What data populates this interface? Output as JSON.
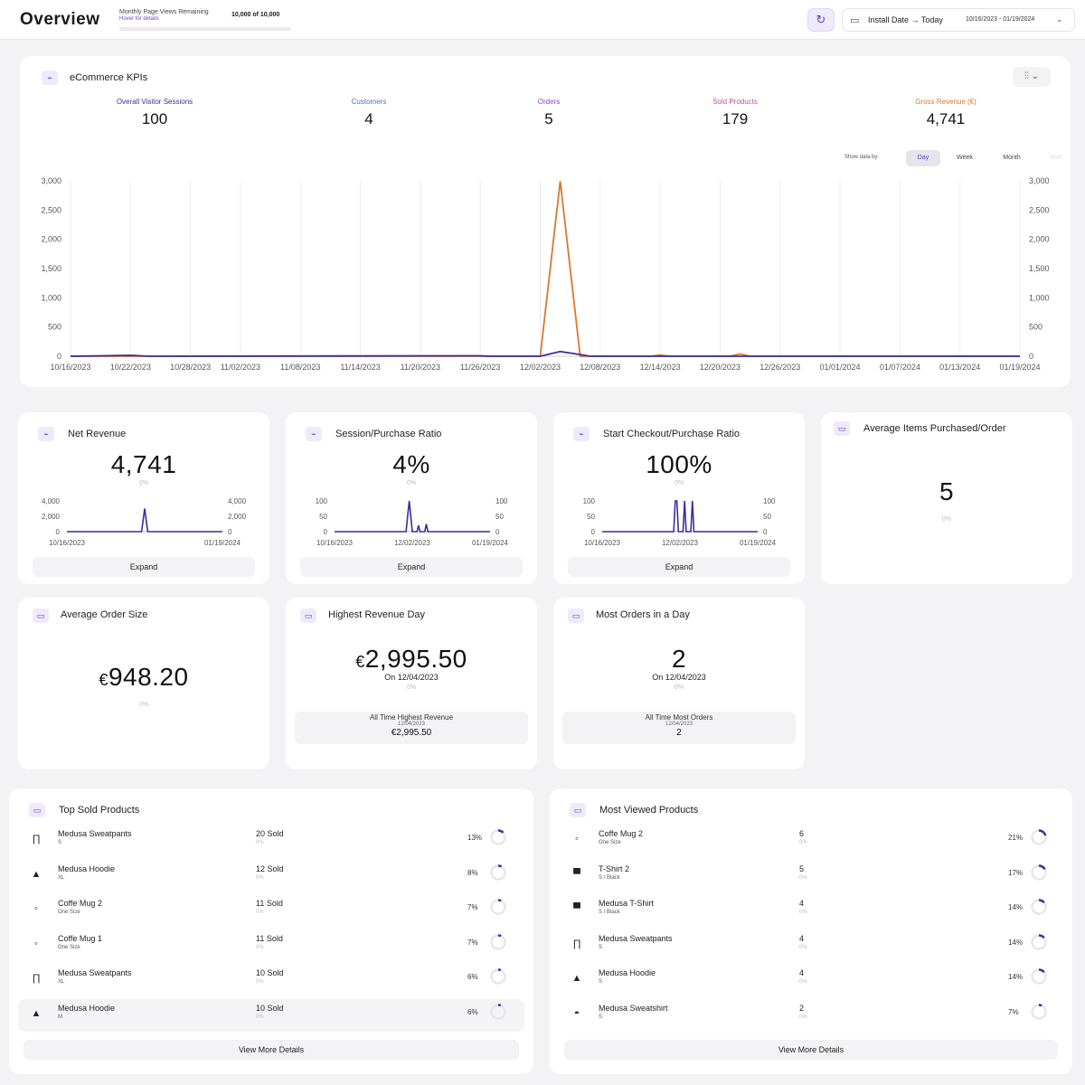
{
  "header": {
    "title": "Overview",
    "page_views_label": "Monthly Page Views Remaining",
    "page_views_hint": "Hover for details",
    "page_views_value": "10,000 of 10,000",
    "date_label": "Install Date → Today",
    "date_range": "10/16/2023 - 01/19/2024"
  },
  "kpi": {
    "title": "eCommerce KPIs",
    "metrics": [
      {
        "label": "Overall Visitor Sessions",
        "value": "100",
        "color": "#3b2d9e"
      },
      {
        "label": "Customers",
        "value": "4",
        "color": "#4a6fd1"
      },
      {
        "label": "Orders",
        "value": "5",
        "color": "#8e44c7"
      },
      {
        "label": "Sold Products",
        "value": "179",
        "color": "#c04fa0"
      },
      {
        "label": "Gross Revenue (€)",
        "value": "4,741",
        "color": "#d9782e"
      }
    ],
    "show_by_label": "Show data by:",
    "show_by_options": [
      "Day",
      "Week",
      "Month",
      "Year"
    ],
    "show_by_selected": "Day"
  },
  "chart_data": [
    {
      "type": "line",
      "title": "",
      "x": [
        "10/16/2023",
        "10/22/2023",
        "10/28/2023",
        "11/02/2023",
        "11/08/2023",
        "11/14/2023",
        "11/20/2023",
        "11/26/2023",
        "12/02/2023",
        "12/08/2023",
        "12/14/2023",
        "12/20/2023",
        "12/26/2023",
        "01/01/2024",
        "01/07/2024",
        "01/13/2024",
        "01/19/2024"
      ],
      "ylim": [
        0,
        3000
      ],
      "yticks": [
        "3,000",
        "2,500",
        "2,000",
        "1,500",
        "1,000",
        "500",
        "0"
      ],
      "series": [
        {
          "name": "Gross Revenue (€)",
          "color": "#d9782e",
          "points": [
            [
              "10/16/2023",
              0
            ],
            [
              "12/02/2023",
              0
            ],
            [
              "12/04/2023",
              2995.5
            ],
            [
              "12/06/2023",
              0
            ],
            [
              "12/13/2023",
              0
            ],
            [
              "12/14/2023",
              20
            ],
            [
              "12/15/2023",
              0
            ],
            [
              "12/21/2023",
              0
            ],
            [
              "12/22/2023",
              40
            ],
            [
              "12/23/2023",
              0
            ],
            [
              "01/19/2024",
              0
            ]
          ]
        },
        {
          "name": "Overall Visitor Sessions",
          "color": "#3b2d9e",
          "points": [
            [
              "10/16/2023",
              0
            ],
            [
              "10/22/2023",
              15
            ],
            [
              "10/24/2023",
              0
            ],
            [
              "11/26/2023",
              8
            ],
            [
              "11/27/2023",
              0
            ],
            [
              "12/02/2023",
              0
            ],
            [
              "12/04/2023",
              80
            ],
            [
              "12/06/2023",
              30
            ],
            [
              "12/07/2023",
              0
            ],
            [
              "01/19/2024",
              0
            ]
          ]
        }
      ]
    },
    {
      "type": "line",
      "title": "",
      "x_ticks": [
        "10/16/2023",
        "01/19/2024"
      ],
      "yticks": [
        "4,000",
        "2,000",
        "0"
      ],
      "ylim": [
        0,
        4000
      ],
      "series": [
        {
          "name": "",
          "color": "#3b2d9e",
          "points": [
            [
              0,
              0
            ],
            [
              0.48,
              0
            ],
            [
              0.5,
              2995
            ],
            [
              0.52,
              0
            ],
            [
              1,
              0
            ]
          ]
        }
      ]
    },
    {
      "type": "line",
      "title": "",
      "x_ticks": [
        "10/16/2023",
        "12/02/2023",
        "01/19/2024"
      ],
      "yticks": [
        "100",
        "50",
        "0"
      ],
      "ylim": [
        0,
        100
      ],
      "series": [
        {
          "name": "",
          "color": "#3b2d9e",
          "points": [
            [
              0,
              0
            ],
            [
              0.46,
              0
            ],
            [
              0.48,
              100
            ],
            [
              0.5,
              0
            ],
            [
              0.53,
              0
            ],
            [
              0.54,
              20
            ],
            [
              0.55,
              0
            ],
            [
              0.58,
              0
            ],
            [
              0.59,
              25
            ],
            [
              0.6,
              0
            ],
            [
              1,
              0
            ]
          ]
        }
      ]
    },
    {
      "type": "line",
      "title": "",
      "x_ticks": [
        "10/16/2023",
        "12/02/2023",
        "01/19/2024"
      ],
      "yticks": [
        "100",
        "50",
        "0"
      ],
      "ylim": [
        0,
        100
      ],
      "series": [
        {
          "name": "",
          "color": "#3b2d9e",
          "points": [
            [
              0,
              0
            ],
            [
              0.46,
              0
            ],
            [
              0.47,
              100
            ],
            [
              0.48,
              100
            ],
            [
              0.49,
              0
            ],
            [
              0.52,
              0
            ],
            [
              0.53,
              100
            ],
            [
              0.54,
              0
            ],
            [
              0.57,
              0
            ],
            [
              0.58,
              100
            ],
            [
              0.59,
              0
            ],
            [
              1,
              0
            ]
          ]
        }
      ]
    }
  ],
  "cards": {
    "net_revenue": {
      "title": "Net Revenue",
      "value": "4,741",
      "pct": "0%",
      "expand": "Expand"
    },
    "session_ratio": {
      "title": "Session/Purchase Ratio",
      "value": "4%",
      "pct": "0%",
      "expand": "Expand"
    },
    "checkout_ratio": {
      "title": "Start Checkout/Purchase Ratio",
      "value": "100%",
      "pct": "0%",
      "expand": "Expand"
    },
    "avg_items": {
      "title": "Average Items Purchased/Order",
      "value": "5",
      "pct": "0%"
    },
    "avg_order": {
      "title": "Average Order Size",
      "currency": "€",
      "value": "948.20",
      "pct": "0%"
    },
    "highest_day": {
      "title": "Highest Revenue Day",
      "currency": "€",
      "value": "2,995.50",
      "on": "On 12/04/2023",
      "pct": "0%",
      "sub_title": "All Time Highest Revenue",
      "sub_date": "12/04/2023",
      "sub_value": "€2,995.50"
    },
    "most_orders": {
      "title": "Most Orders in a Day",
      "value": "2",
      "on": "On 12/04/2023",
      "pct": "0%",
      "sub_title": "All Time Most Orders",
      "sub_date": "12/04/2023",
      "sub_value": "2"
    }
  },
  "top_sold": {
    "title": "Top Sold Products",
    "more": "View More Details",
    "items": [
      {
        "icon": "pants-icon",
        "name": "Medusa Sweatpants",
        "variant": "S",
        "sold": "20 Sold",
        "sub": "0%",
        "pct": "13%",
        "ratio": 0.13
      },
      {
        "icon": "hoodie-icon",
        "name": "Medusa Hoodie",
        "variant": "XL",
        "sold": "12 Sold",
        "sub": "0%",
        "pct": "8%",
        "ratio": 0.08
      },
      {
        "icon": "mug-icon",
        "name": "Coffe Mug 2",
        "variant": "One Size",
        "sold": "11 Sold",
        "sub": "0%",
        "pct": "7%",
        "ratio": 0.07
      },
      {
        "icon": "mug-icon",
        "name": "Coffe Mug 1",
        "variant": "One Size",
        "sold": "11 Sold",
        "sub": "0%",
        "pct": "7%",
        "ratio": 0.07
      },
      {
        "icon": "pants-icon",
        "name": "Medusa Sweatpants",
        "variant": "XL",
        "sold": "10 Sold",
        "sub": "0%",
        "pct": "6%",
        "ratio": 0.06
      },
      {
        "icon": "hoodie-icon",
        "name": "Medusa Hoodie",
        "variant": "M",
        "sold": "10 Sold",
        "sub": "0%",
        "pct": "6%",
        "ratio": 0.06
      }
    ]
  },
  "most_viewed": {
    "title": "Most Viewed Products",
    "more": "View More Details",
    "items": [
      {
        "icon": "mug-icon",
        "name": "Coffe Mug 2",
        "variant": "One Size",
        "sold": "6",
        "sub": "0%",
        "pct": "21%",
        "ratio": 0.21
      },
      {
        "icon": "tshirt-icon",
        "name": "T-Shirt 2",
        "variant": "S / Black",
        "sold": "5",
        "sub": "0%",
        "pct": "17%",
        "ratio": 0.17
      },
      {
        "icon": "tshirt-icon",
        "name": "Medusa T-Shirt",
        "variant": "S / Black",
        "sold": "4",
        "sub": "0%",
        "pct": "14%",
        "ratio": 0.14
      },
      {
        "icon": "pants-icon",
        "name": "Medusa Sweatpants",
        "variant": "S",
        "sold": "4",
        "sub": "0%",
        "pct": "14%",
        "ratio": 0.14
      },
      {
        "icon": "hoodie-icon",
        "name": "Medusa Hoodie",
        "variant": "S",
        "sold": "4",
        "sub": "0%",
        "pct": "14%",
        "ratio": 0.14
      },
      {
        "icon": "sweatshirt-icon",
        "name": "Medusa Sweatshirt",
        "variant": "S",
        "sold": "2",
        "sub": "0%",
        "pct": "7%",
        "ratio": 0.07
      }
    ]
  }
}
